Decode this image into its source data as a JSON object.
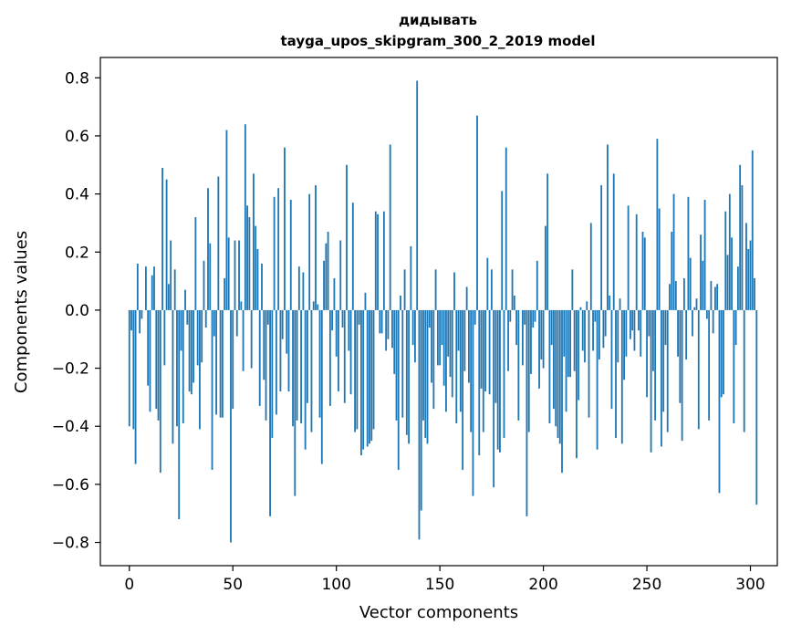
{
  "chart_data": {
    "type": "bar",
    "title": "дидывать",
    "subtitle": "tayga_upos_skipgram_300_2_2019 model",
    "xlabel": "Vector components",
    "ylabel": "Components values",
    "xlim": [
      -14,
      313
    ],
    "ylim": [
      -0.88,
      0.87
    ],
    "xticks": [
      0,
      50,
      100,
      150,
      200,
      250,
      300
    ],
    "yticks": [
      -0.8,
      -0.6,
      -0.4,
      -0.2,
      0.0,
      0.2,
      0.4,
      0.6,
      0.8
    ],
    "ytick_labels": [
      "−0.8",
      "−0.6",
      "−0.4",
      "−0.2",
      "0.0",
      "0.2",
      "0.4",
      "0.6",
      "0.8"
    ],
    "bar_color": "#1f77b4",
    "values": [
      -0.4,
      -0.07,
      -0.41,
      -0.53,
      0.16,
      -0.08,
      -0.03,
      0.0,
      0.15,
      -0.26,
      -0.35,
      0.12,
      0.15,
      -0.34,
      -0.38,
      -0.56,
      0.49,
      -0.19,
      0.45,
      0.09,
      0.24,
      -0.46,
      0.14,
      -0.4,
      -0.72,
      -0.14,
      -0.39,
      0.07,
      -0.05,
      -0.28,
      -0.29,
      -0.25,
      0.32,
      -0.19,
      -0.41,
      -0.18,
      0.17,
      -0.06,
      0.42,
      0.23,
      -0.55,
      -0.09,
      -0.36,
      0.46,
      -0.37,
      -0.37,
      0.11,
      0.62,
      0.25,
      -0.8,
      -0.34,
      0.24,
      -0.09,
      0.24,
      0.03,
      -0.21,
      0.64,
      0.36,
      0.32,
      -0.2,
      0.47,
      0.29,
      0.21,
      -0.33,
      0.16,
      -0.24,
      -0.38,
      -0.05,
      -0.71,
      -0.44,
      0.39,
      -0.36,
      0.42,
      -0.28,
      -0.1,
      0.56,
      -0.15,
      -0.28,
      0.38,
      -0.4,
      -0.64,
      -0.38,
      0.15,
      -0.39,
      0.13,
      -0.48,
      -0.32,
      0.4,
      -0.42,
      0.03,
      0.43,
      0.02,
      -0.37,
      -0.53,
      0.17,
      0.23,
      0.27,
      -0.33,
      -0.07,
      0.11,
      -0.16,
      -0.28,
      0.24,
      -0.06,
      -0.32,
      0.5,
      -0.14,
      -0.29,
      0.37,
      -0.42,
      -0.41,
      -0.05,
      -0.5,
      -0.48,
      0.06,
      -0.47,
      -0.46,
      -0.45,
      -0.41,
      0.34,
      0.33,
      -0.08,
      -0.08,
      0.34,
      -0.14,
      -0.1,
      0.57,
      -0.13,
      -0.22,
      -0.38,
      -0.55,
      0.05,
      -0.37,
      0.14,
      -0.43,
      -0.46,
      0.22,
      -0.12,
      -0.18,
      0.79,
      -0.79,
      -0.69,
      -0.38,
      -0.44,
      -0.46,
      -0.06,
      -0.25,
      -0.34,
      0.14,
      -0.19,
      -0.19,
      -0.12,
      -0.26,
      -0.35,
      -0.16,
      -0.23,
      -0.3,
      0.13,
      -0.39,
      -0.14,
      -0.35,
      -0.55,
      -0.21,
      0.08,
      -0.25,
      -0.42,
      -0.64,
      -0.05,
      0.67,
      -0.5,
      -0.27,
      -0.42,
      -0.28,
      0.18,
      -0.29,
      0.14,
      -0.61,
      -0.32,
      -0.48,
      -0.49,
      0.41,
      -0.44,
      0.56,
      -0.21,
      -0.04,
      0.14,
      0.05,
      -0.12,
      -0.38,
      0.0,
      -0.19,
      -0.05,
      -0.71,
      -0.42,
      -0.22,
      -0.06,
      -0.04,
      0.17,
      -0.27,
      -0.17,
      -0.2,
      0.29,
      0.47,
      -0.39,
      -0.12,
      -0.34,
      -0.4,
      -0.44,
      -0.46,
      -0.56,
      -0.16,
      -0.35,
      -0.23,
      -0.23,
      0.14,
      -0.21,
      -0.51,
      -0.31,
      0.01,
      -0.14,
      -0.18,
      0.03,
      -0.37,
      0.3,
      -0.14,
      -0.04,
      -0.48,
      -0.17,
      0.43,
      -0.13,
      -0.09,
      0.57,
      0.05,
      -0.34,
      0.47,
      -0.44,
      -0.18,
      0.04,
      -0.46,
      -0.24,
      -0.16,
      0.36,
      -0.1,
      -0.07,
      -0.14,
      0.33,
      -0.07,
      -0.16,
      0.27,
      0.25,
      -0.3,
      -0.09,
      -0.49,
      -0.21,
      -0.38,
      0.59,
      0.35,
      -0.47,
      -0.35,
      -0.12,
      -0.42,
      0.09,
      0.27,
      0.4,
      0.1,
      -0.16,
      -0.32,
      -0.45,
      0.11,
      -0.17,
      0.39,
      0.18,
      -0.09,
      0.01,
      0.04,
      -0.41,
      0.26,
      0.17,
      0.38,
      -0.03,
      -0.38,
      0.1,
      -0.08,
      0.08,
      0.09,
      -0.63,
      -0.3,
      -0.29,
      0.34,
      0.19,
      0.4,
      0.25,
      -0.39,
      -0.12,
      0.15,
      0.5,
      0.43,
      -0.42,
      0.3,
      0.21,
      0.24,
      0.55,
      0.11,
      -0.67
    ]
  }
}
